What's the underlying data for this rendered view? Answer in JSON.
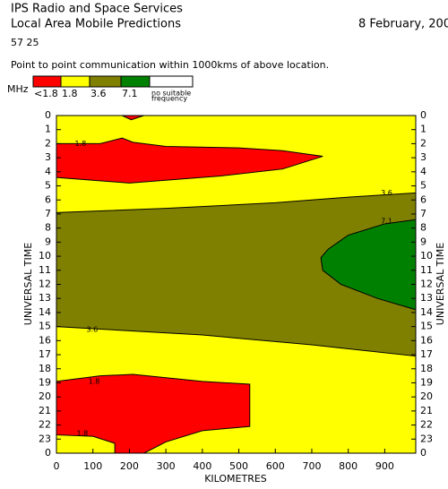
{
  "header": {
    "title": "IPS Radio and Space Services",
    "subtitle": "Local Area Mobile Predictions",
    "date": "8 February, 200",
    "location": "57 25",
    "description": "Point to point communication within 1000kms of above location."
  },
  "chart_data": {
    "type": "contour",
    "xlabel": "KILOMETRES",
    "ylabel": "UNIVERSAL TIME",
    "legend_unit": "MHz",
    "legend": [
      {
        "label": "<1.8",
        "color": "#ff0000"
      },
      {
        "label": "1.8",
        "color": "#ffff00"
      },
      {
        "label": "3.6",
        "color": "#808000"
      },
      {
        "label": "7.1",
        "color": "#008000"
      },
      {
        "label": [
          "no suitable",
          "frequency"
        ],
        "color": "#ffffff"
      }
    ],
    "background_color": "#ffff00",
    "xlim": [
      0,
      985
    ],
    "ylim": [
      0,
      24
    ],
    "xticks": [
      0,
      100,
      200,
      300,
      400,
      500,
      600,
      700,
      800,
      900
    ],
    "yticks": [
      0,
      1,
      2,
      3,
      4,
      5,
      6,
      7,
      8,
      9,
      10,
      11,
      12,
      13,
      14,
      15,
      16,
      17,
      18,
      19,
      20,
      21,
      22,
      23,
      {
        "value": 24,
        "label": "0"
      }
    ],
    "regions": [
      {
        "color": "#808000",
        "x": [
          0,
          300,
          600,
          800,
          985,
          985,
          700,
          400,
          0
        ],
        "y": [
          6.9,
          6.6,
          6.2,
          5.8,
          5.5,
          17.1,
          16.3,
          15.6,
          15.0
        ]
      },
      {
        "color": "#008000",
        "x": [
          985,
          900,
          800,
          745,
          725,
          730,
          780,
          880,
          985
        ],
        "y": [
          7.4,
          7.7,
          8.5,
          9.5,
          10.1,
          11.0,
          12.0,
          13.0,
          13.8
        ]
      },
      {
        "color": "#ff0000",
        "x": [
          180,
          240,
          205
        ],
        "y": [
          0,
          0,
          0.3
        ]
      },
      {
        "color": "#ff0000",
        "x": [
          0,
          120,
          180,
          210,
          300,
          500,
          620,
          730,
          620,
          450,
          200,
          0
        ],
        "y": [
          2.0,
          2.0,
          1.6,
          1.9,
          2.2,
          2.3,
          2.5,
          2.9,
          3.8,
          4.3,
          4.8,
          4.4
        ]
      },
      {
        "color": "#ff0000",
        "x": [
          0,
          120,
          210,
          400,
          530,
          530,
          400,
          300,
          240,
          160,
          160,
          100,
          0
        ],
        "y": [
          18.9,
          18.5,
          18.4,
          18.9,
          19.1,
          22.1,
          22.4,
          23.2,
          24,
          24,
          23.3,
          22.8,
          22.7
        ]
      }
    ],
    "annotations": [
      {
        "text": "1.8",
        "x": 66,
        "y": 2.0
      },
      {
        "text": "3.6",
        "x": 905,
        "y": 5.5
      },
      {
        "text": "7.1",
        "x": 905,
        "y": 7.5
      },
      {
        "text": "3.6",
        "x": 98,
        "y": 15.2
      },
      {
        "text": "1.8",
        "x": 103,
        "y": 18.9
      },
      {
        "text": "1.8",
        "x": 71,
        "y": 22.6
      }
    ]
  }
}
